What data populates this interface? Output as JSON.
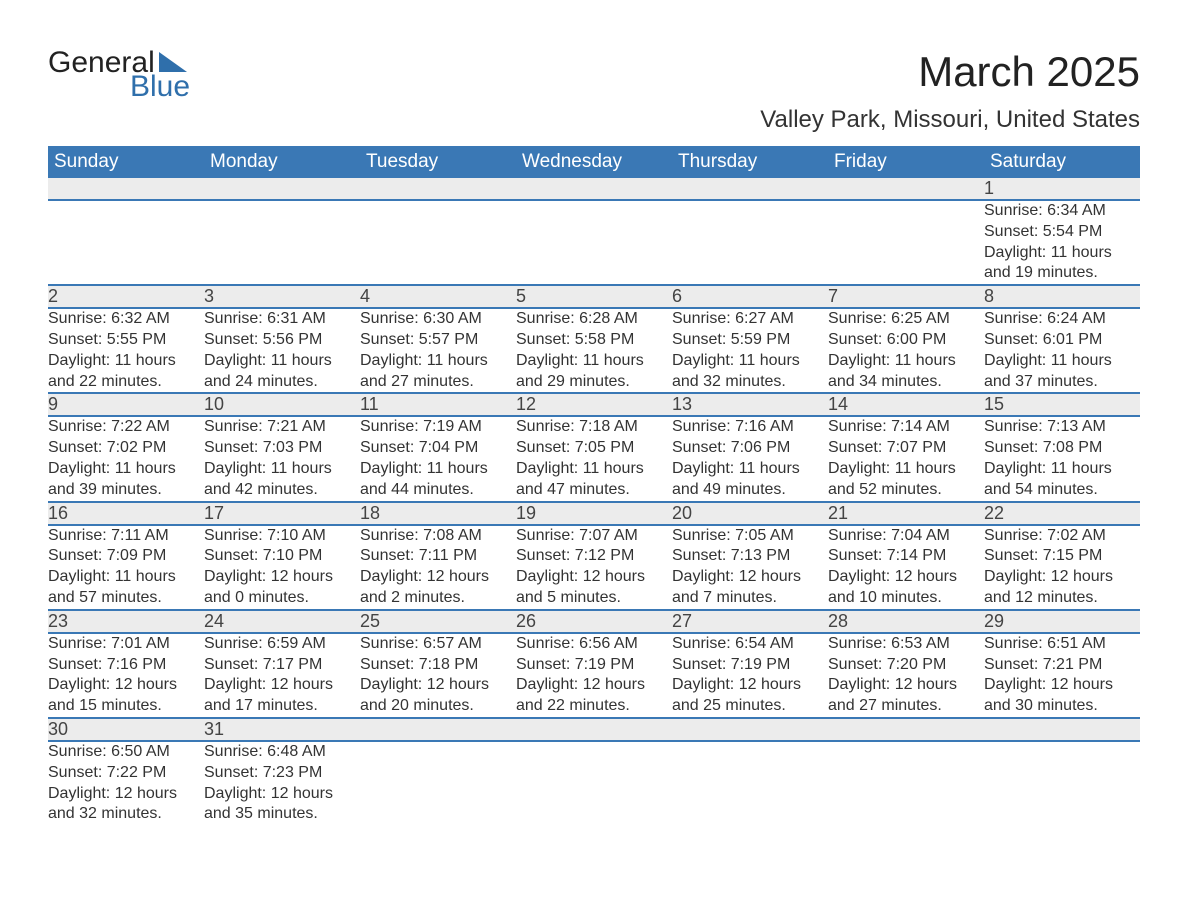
{
  "brand": {
    "name_a": "General",
    "name_b": "Blue",
    "tri_color": "#2f6fab"
  },
  "title": "March 2025",
  "location": "Valley Park, Missouri, United States",
  "colors": {
    "header_bg": "#3a78b5",
    "header_fg": "#ffffff",
    "daynum_bg": "#ececec",
    "row_border": "#3a78b5",
    "text": "#333333",
    "background": "#ffffff"
  },
  "typography": {
    "title_fontsize": 42,
    "location_fontsize": 24,
    "dayheader_fontsize": 19,
    "daynum_fontsize": 18,
    "cell_fontsize": 16
  },
  "calendar": {
    "type": "table",
    "columns": [
      "Sunday",
      "Monday",
      "Tuesday",
      "Wednesday",
      "Thursday",
      "Friday",
      "Saturday"
    ],
    "weeks": [
      [
        null,
        null,
        null,
        null,
        null,
        null,
        {
          "n": "1",
          "l": [
            "Sunrise: 6:34 AM",
            "Sunset: 5:54 PM",
            "Daylight: 11 hours and 19 minutes."
          ]
        }
      ],
      [
        {
          "n": "2",
          "l": [
            "Sunrise: 6:32 AM",
            "Sunset: 5:55 PM",
            "Daylight: 11 hours and 22 minutes."
          ]
        },
        {
          "n": "3",
          "l": [
            "Sunrise: 6:31 AM",
            "Sunset: 5:56 PM",
            "Daylight: 11 hours and 24 minutes."
          ]
        },
        {
          "n": "4",
          "l": [
            "Sunrise: 6:30 AM",
            "Sunset: 5:57 PM",
            "Daylight: 11 hours and 27 minutes."
          ]
        },
        {
          "n": "5",
          "l": [
            "Sunrise: 6:28 AM",
            "Sunset: 5:58 PM",
            "Daylight: 11 hours and 29 minutes."
          ]
        },
        {
          "n": "6",
          "l": [
            "Sunrise: 6:27 AM",
            "Sunset: 5:59 PM",
            "Daylight: 11 hours and 32 minutes."
          ]
        },
        {
          "n": "7",
          "l": [
            "Sunrise: 6:25 AM",
            "Sunset: 6:00 PM",
            "Daylight: 11 hours and 34 minutes."
          ]
        },
        {
          "n": "8",
          "l": [
            "Sunrise: 6:24 AM",
            "Sunset: 6:01 PM",
            "Daylight: 11 hours and 37 minutes."
          ]
        }
      ],
      [
        {
          "n": "9",
          "l": [
            "Sunrise: 7:22 AM",
            "Sunset: 7:02 PM",
            "Daylight: 11 hours and 39 minutes."
          ]
        },
        {
          "n": "10",
          "l": [
            "Sunrise: 7:21 AM",
            "Sunset: 7:03 PM",
            "Daylight: 11 hours and 42 minutes."
          ]
        },
        {
          "n": "11",
          "l": [
            "Sunrise: 7:19 AM",
            "Sunset: 7:04 PM",
            "Daylight: 11 hours and 44 minutes."
          ]
        },
        {
          "n": "12",
          "l": [
            "Sunrise: 7:18 AM",
            "Sunset: 7:05 PM",
            "Daylight: 11 hours and 47 minutes."
          ]
        },
        {
          "n": "13",
          "l": [
            "Sunrise: 7:16 AM",
            "Sunset: 7:06 PM",
            "Daylight: 11 hours and 49 minutes."
          ]
        },
        {
          "n": "14",
          "l": [
            "Sunrise: 7:14 AM",
            "Sunset: 7:07 PM",
            "Daylight: 11 hours and 52 minutes."
          ]
        },
        {
          "n": "15",
          "l": [
            "Sunrise: 7:13 AM",
            "Sunset: 7:08 PM",
            "Daylight: 11 hours and 54 minutes."
          ]
        }
      ],
      [
        {
          "n": "16",
          "l": [
            "Sunrise: 7:11 AM",
            "Sunset: 7:09 PM",
            "Daylight: 11 hours and 57 minutes."
          ]
        },
        {
          "n": "17",
          "l": [
            "Sunrise: 7:10 AM",
            "Sunset: 7:10 PM",
            "Daylight: 12 hours and 0 minutes."
          ]
        },
        {
          "n": "18",
          "l": [
            "Sunrise: 7:08 AM",
            "Sunset: 7:11 PM",
            "Daylight: 12 hours and 2 minutes."
          ]
        },
        {
          "n": "19",
          "l": [
            "Sunrise: 7:07 AM",
            "Sunset: 7:12 PM",
            "Daylight: 12 hours and 5 minutes."
          ]
        },
        {
          "n": "20",
          "l": [
            "Sunrise: 7:05 AM",
            "Sunset: 7:13 PM",
            "Daylight: 12 hours and 7 minutes."
          ]
        },
        {
          "n": "21",
          "l": [
            "Sunrise: 7:04 AM",
            "Sunset: 7:14 PM",
            "Daylight: 12 hours and 10 minutes."
          ]
        },
        {
          "n": "22",
          "l": [
            "Sunrise: 7:02 AM",
            "Sunset: 7:15 PM",
            "Daylight: 12 hours and 12 minutes."
          ]
        }
      ],
      [
        {
          "n": "23",
          "l": [
            "Sunrise: 7:01 AM",
            "Sunset: 7:16 PM",
            "Daylight: 12 hours and 15 minutes."
          ]
        },
        {
          "n": "24",
          "l": [
            "Sunrise: 6:59 AM",
            "Sunset: 7:17 PM",
            "Daylight: 12 hours and 17 minutes."
          ]
        },
        {
          "n": "25",
          "l": [
            "Sunrise: 6:57 AM",
            "Sunset: 7:18 PM",
            "Daylight: 12 hours and 20 minutes."
          ]
        },
        {
          "n": "26",
          "l": [
            "Sunrise: 6:56 AM",
            "Sunset: 7:19 PM",
            "Daylight: 12 hours and 22 minutes."
          ]
        },
        {
          "n": "27",
          "l": [
            "Sunrise: 6:54 AM",
            "Sunset: 7:19 PM",
            "Daylight: 12 hours and 25 minutes."
          ]
        },
        {
          "n": "28",
          "l": [
            "Sunrise: 6:53 AM",
            "Sunset: 7:20 PM",
            "Daylight: 12 hours and 27 minutes."
          ]
        },
        {
          "n": "29",
          "l": [
            "Sunrise: 6:51 AM",
            "Sunset: 7:21 PM",
            "Daylight: 12 hours and 30 minutes."
          ]
        }
      ],
      [
        {
          "n": "30",
          "l": [
            "Sunrise: 6:50 AM",
            "Sunset: 7:22 PM",
            "Daylight: 12 hours and 32 minutes."
          ]
        },
        {
          "n": "31",
          "l": [
            "Sunrise: 6:48 AM",
            "Sunset: 7:23 PM",
            "Daylight: 12 hours and 35 minutes."
          ]
        },
        null,
        null,
        null,
        null,
        null
      ]
    ]
  }
}
